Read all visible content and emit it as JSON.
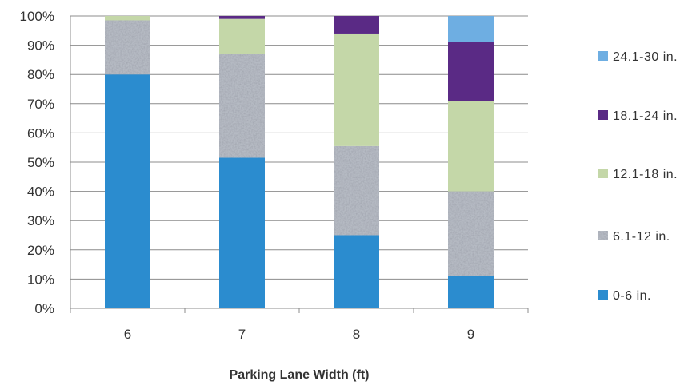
{
  "chart_data": {
    "type": "bar",
    "stacked": true,
    "percent": true,
    "title": "",
    "xlabel": "Parking Lane Width (ft)",
    "ylabel": "",
    "ylim": [
      0,
      100
    ],
    "yticks": [
      "0%",
      "10%",
      "20%",
      "30%",
      "40%",
      "50%",
      "60%",
      "70%",
      "80%",
      "90%",
      "100%"
    ],
    "categories": [
      "6",
      "7",
      "8",
      "9"
    ],
    "grid": true,
    "legend_position": "right",
    "series": [
      {
        "name": "0-6 in.",
        "color": "#2b8ccf",
        "pattern": false,
        "values": [
          80,
          51.5,
          25,
          11
        ]
      },
      {
        "name": "6.1-12 in.",
        "color": "#b5bac3",
        "pattern": true,
        "values": [
          18.5,
          35.5,
          30.5,
          29
        ]
      },
      {
        "name": "12.1-18 in.",
        "color": "#c4d7a8",
        "pattern": false,
        "values": [
          1.5,
          12,
          38.5,
          31
        ]
      },
      {
        "name": "18.1-24 in.",
        "color": "#5a2a85",
        "pattern": false,
        "values": [
          0,
          1,
          6,
          20
        ]
      },
      {
        "name": "24.1-30 in.",
        "color": "#6eaee2",
        "pattern": false,
        "values": [
          0,
          0,
          0,
          9
        ]
      }
    ]
  }
}
